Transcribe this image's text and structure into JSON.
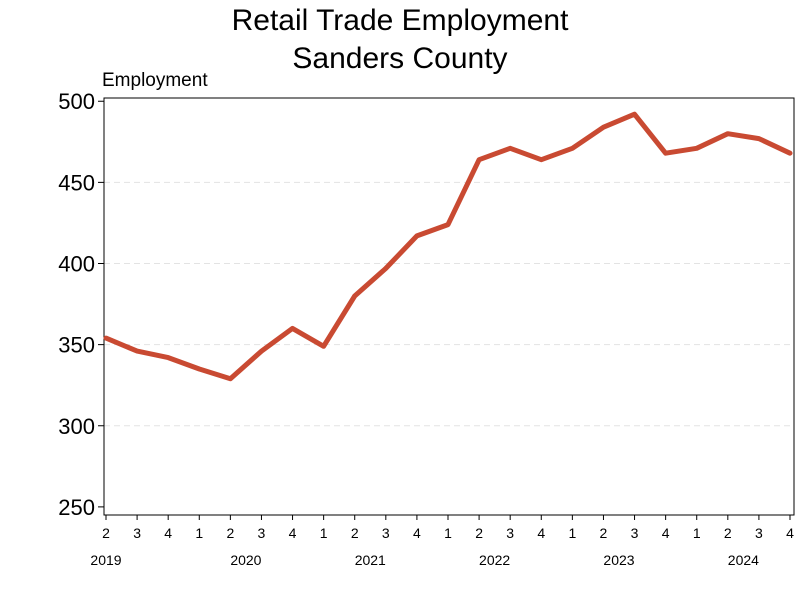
{
  "chart_data": {
    "type": "line",
    "title": [
      "Retail Trade Employment",
      "Sanders County"
    ],
    "ylabel": "Employment",
    "ylim": [
      245,
      502
    ],
    "yticks": [
      250,
      300,
      350,
      400,
      450,
      500
    ],
    "grid": true,
    "line_color": "#c94a32",
    "quarter_labels": [
      "2",
      "3",
      "4",
      "1",
      "2",
      "3",
      "4",
      "1",
      "2",
      "3",
      "4",
      "1",
      "2",
      "3",
      "4",
      "1",
      "2",
      "3",
      "4",
      "1",
      "2",
      "3",
      "4"
    ],
    "years": [
      {
        "label": "2019",
        "start_index": 0
      },
      {
        "label": "2020",
        "start_index": 3
      },
      {
        "label": "2021",
        "start_index": 7
      },
      {
        "label": "2022",
        "start_index": 11
      },
      {
        "label": "2023",
        "start_index": 15
      },
      {
        "label": "2024",
        "start_index": 19
      }
    ],
    "series": [
      {
        "values": [
          354,
          346,
          342,
          335,
          329,
          346,
          360,
          349,
          380,
          397,
          417,
          424,
          464,
          471,
          464,
          471,
          484,
          492,
          468,
          471,
          480,
          477,
          468
        ]
      }
    ]
  }
}
